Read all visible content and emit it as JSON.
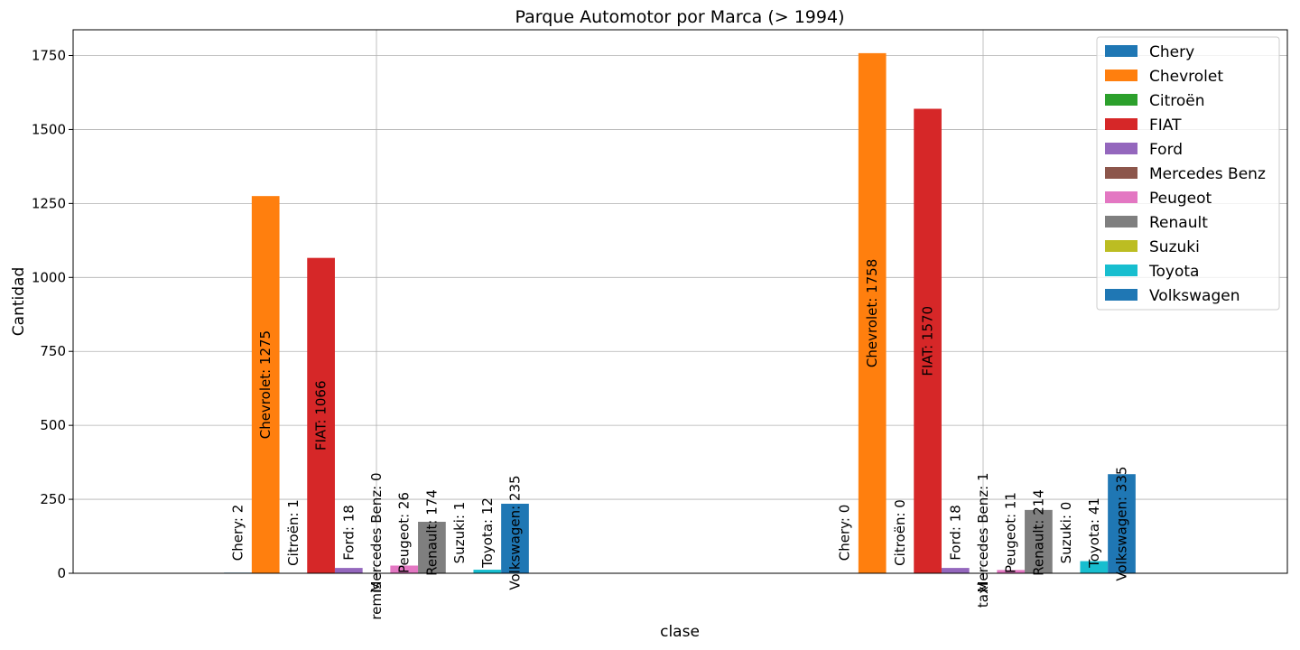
{
  "chart_data": {
    "type": "bar",
    "title": "Parque Automotor por Marca (> 1994)",
    "xlabel": "clase",
    "ylabel": "Cantidad",
    "categories": [
      "remis",
      "taxi"
    ],
    "ylim": [
      0,
      1837
    ],
    "yticks": [
      0,
      250,
      500,
      750,
      1000,
      1250,
      1500,
      1750
    ],
    "grid": true,
    "legend_position": "top-right",
    "series": [
      {
        "name": "Chery",
        "color": "#1f77b4",
        "values": [
          2,
          0
        ],
        "labels": [
          "Chery: 2",
          "Chery: 0"
        ]
      },
      {
        "name": "Chevrolet",
        "color": "#ff7f0e",
        "values": [
          1275,
          1758
        ],
        "labels": [
          "Chevrolet: 1275",
          "Chevrolet: 1758"
        ]
      },
      {
        "name": "Citroën",
        "color": "#2ca02c",
        "values": [
          1,
          0
        ],
        "labels": [
          "Citroën: 1",
          "Citroën: 0"
        ]
      },
      {
        "name": "FIAT",
        "color": "#d62728",
        "values": [
          1066,
          1570
        ],
        "labels": [
          "FIAT: 1066",
          "FIAT: 1570"
        ]
      },
      {
        "name": "Ford",
        "color": "#9467bd",
        "values": [
          18,
          18
        ],
        "labels": [
          "Ford: 18",
          "Ford: 18"
        ]
      },
      {
        "name": "Mercedes Benz",
        "color": "#8c564b",
        "values": [
          0,
          1
        ],
        "labels": [
          "Mercedes Benz: 0",
          "Mercedes Benz: 1"
        ]
      },
      {
        "name": "Peugeot",
        "color": "#e377c2",
        "values": [
          26,
          11
        ],
        "labels": [
          "Peugeot: 26",
          "Peugeot: 11"
        ]
      },
      {
        "name": "Renault",
        "color": "#7f7f7f",
        "values": [
          174,
          214
        ],
        "labels": [
          "Renault: 174",
          "Renault: 214"
        ]
      },
      {
        "name": "Suzuki",
        "color": "#bcbd22",
        "values": [
          1,
          0
        ],
        "labels": [
          "Suzuki: 1",
          "Suzuki: 0"
        ]
      },
      {
        "name": "Toyota",
        "color": "#17becf",
        "values": [
          12,
          41
        ],
        "labels": [
          "Toyota: 12",
          "Toyota: 41"
        ]
      },
      {
        "name": "Volkswagen",
        "color": "#1f77b4",
        "values": [
          235,
          335
        ],
        "labels": [
          "Volkswagen: 235",
          "Volkswagen: 335"
        ]
      }
    ]
  }
}
